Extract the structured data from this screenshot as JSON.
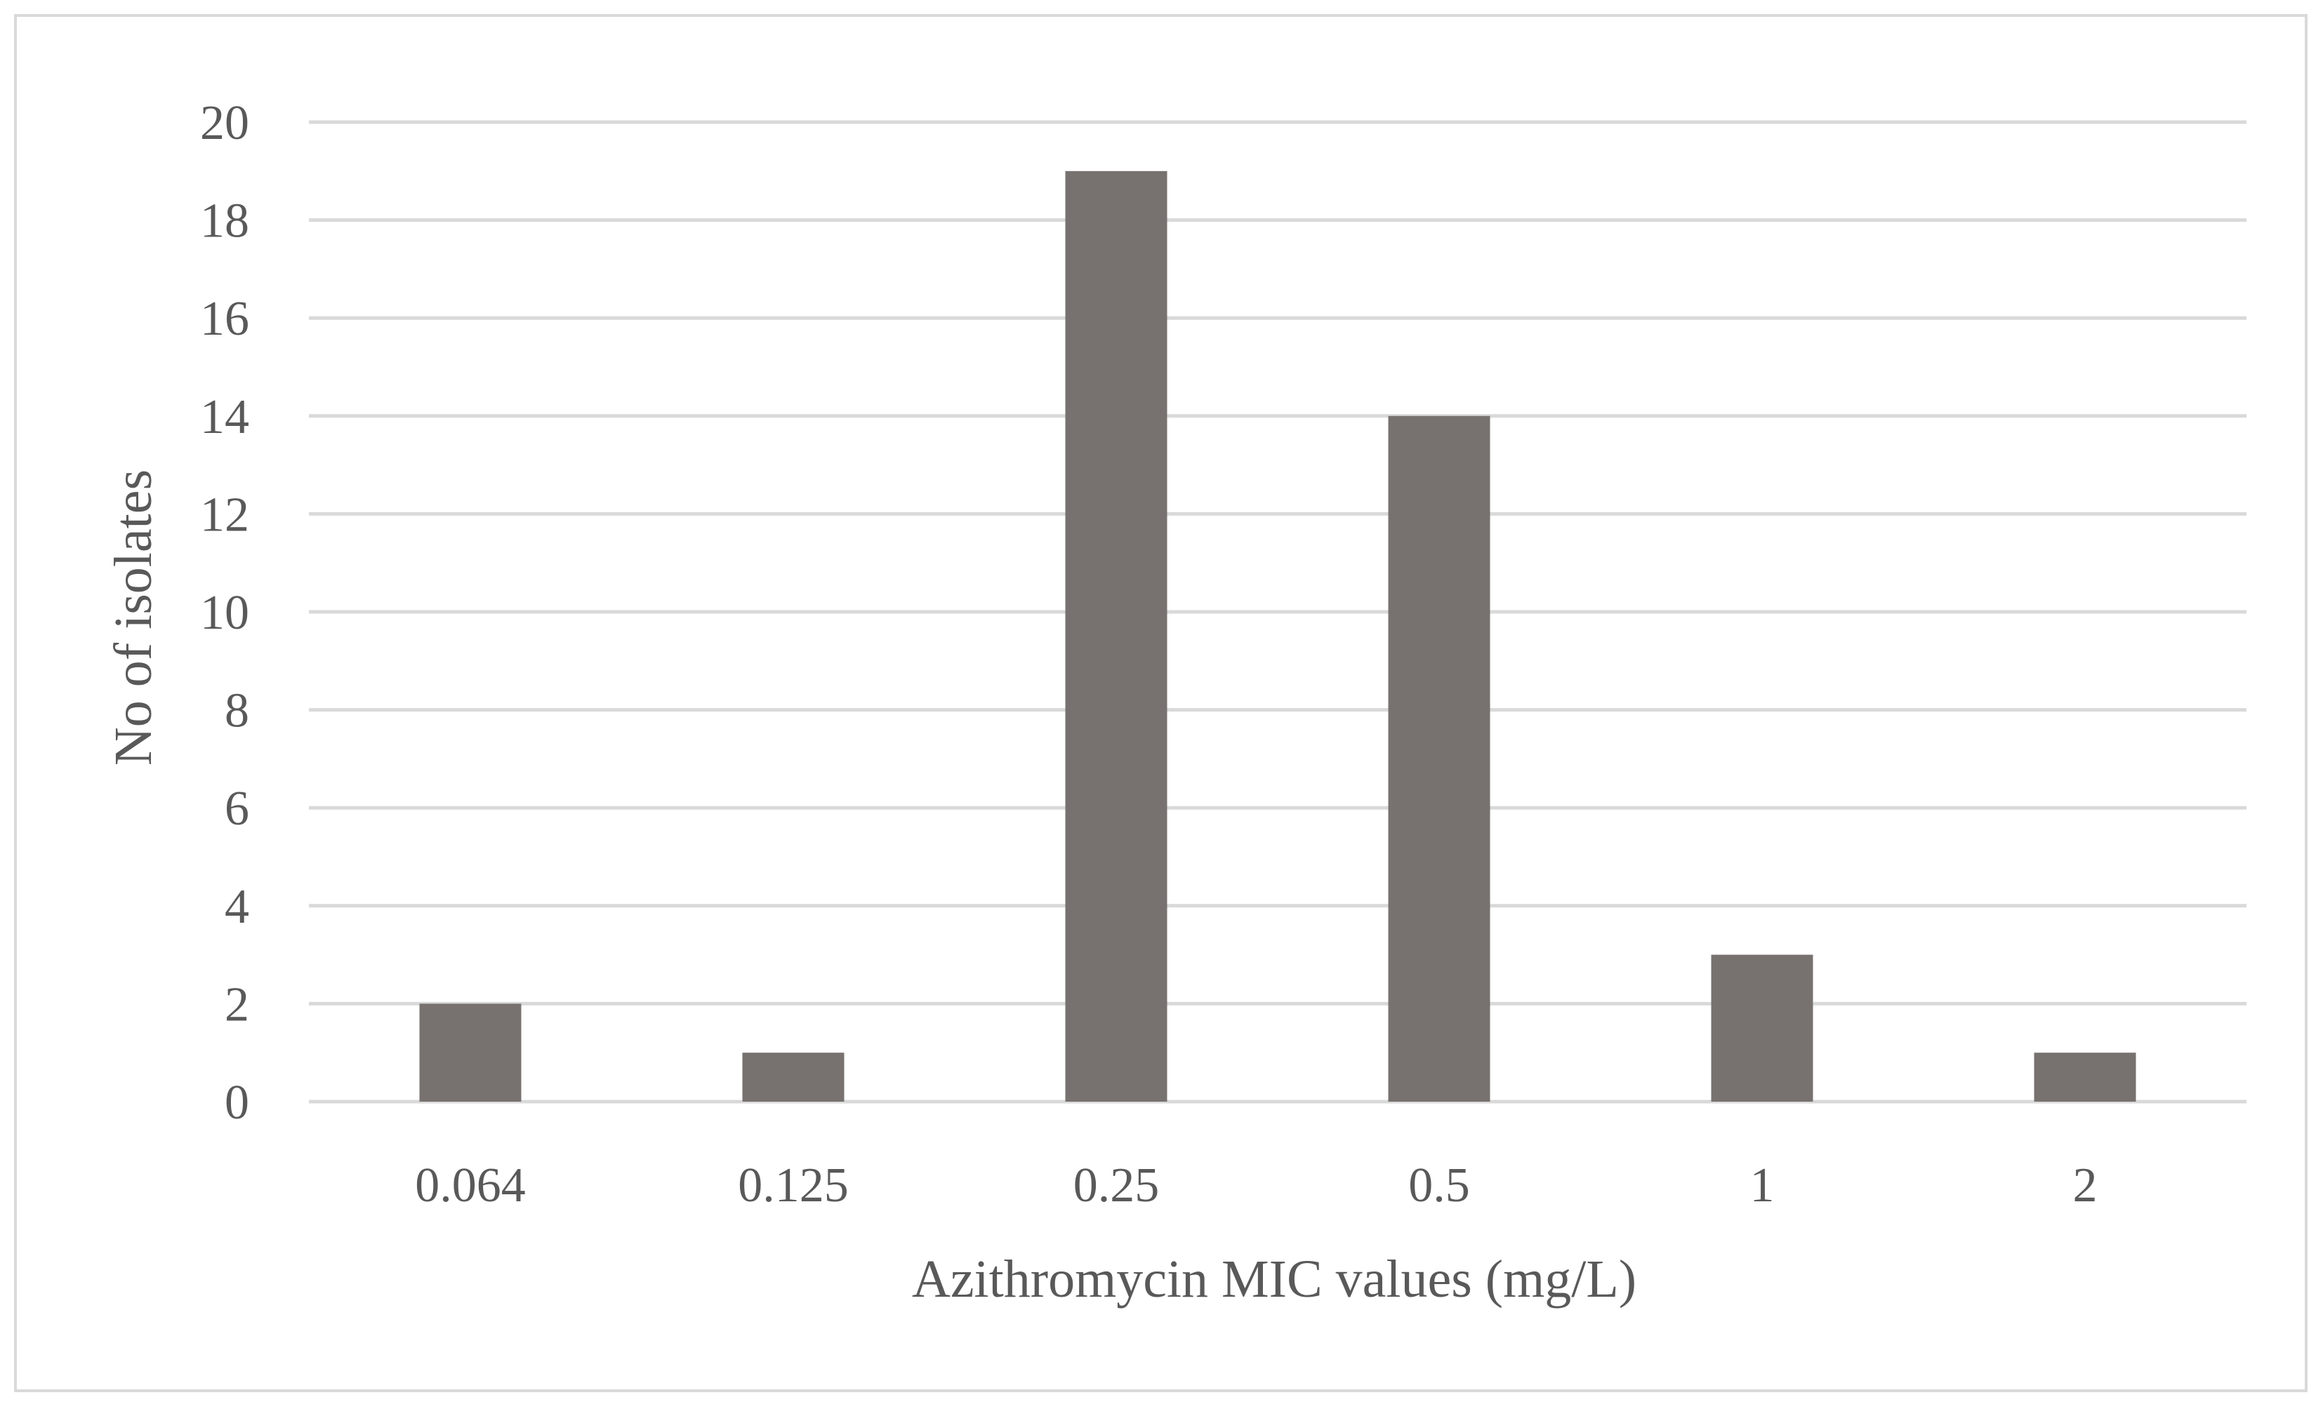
{
  "chart_data": {
    "type": "bar",
    "title": "",
    "categories": [
      "0.064",
      "0.125",
      "0.25",
      "0.5",
      "1",
      "2"
    ],
    "values": [
      2,
      1,
      19,
      14,
      3,
      1
    ],
    "xlabel": "Azithromycin MIC values (mg/L)",
    "ylabel": "No of isolates",
    "ylim": [
      0,
      20
    ],
    "yticks": [
      "0",
      "2",
      "4",
      "6",
      "8",
      "10",
      "12",
      "14",
      "16",
      "18",
      "20"
    ],
    "grid": true,
    "legend": "none",
    "bar_color": "#77726f"
  }
}
